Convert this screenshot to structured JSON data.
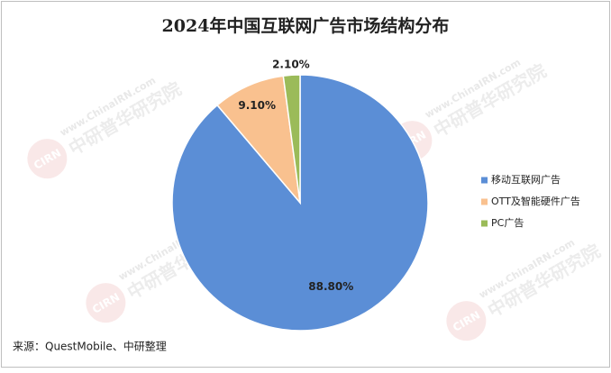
{
  "chart_data": {
    "type": "pie",
    "title": "2024年中国互联网广告市场结构分布",
    "categories": [
      "移动互联网广告",
      "OTT及智能硬件广告",
      "PC广告"
    ],
    "values": [
      88.8,
      9.1,
      2.1
    ],
    "value_labels": [
      "88.80%",
      "9.10%",
      "2.10%"
    ],
    "colors": [
      "#5b8ed6",
      "#f9c18f",
      "#9bbb59"
    ],
    "legend": "right",
    "source": "来源：QuestMobile、中研整理",
    "watermark": {
      "url": "www.ChinaIRN.com",
      "name": "中研普华研究院",
      "logo": "CIRN"
    }
  }
}
